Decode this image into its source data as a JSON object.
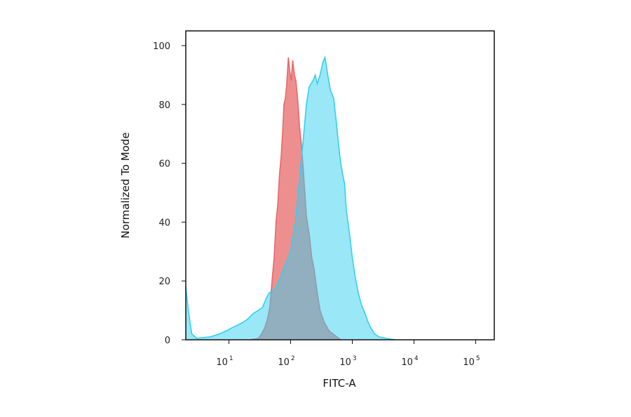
{
  "chart_data": {
    "type": "area",
    "title": "",
    "xlabel": "FITC-A",
    "ylabel": "Normalized To Mode",
    "xscale": "log",
    "xlim": [
      2,
      200000
    ],
    "ylim": [
      0,
      105
    ],
    "x_ticks": [
      {
        "value": 10,
        "base": "10",
        "exp": "1"
      },
      {
        "value": 100,
        "base": "10",
        "exp": "2"
      },
      {
        "value": 1000,
        "base": "10",
        "exp": "3"
      },
      {
        "value": 10000,
        "base": "10",
        "exp": "4"
      },
      {
        "value": 100000,
        "base": "10",
        "exp": "5"
      }
    ],
    "y_ticks": [
      0,
      20,
      40,
      60,
      80,
      100
    ],
    "grid": false,
    "legend": "none",
    "series": [
      {
        "color": "#e8696a",
        "points": [
          [
            22,
            0
          ],
          [
            30,
            0.5
          ],
          [
            34,
            2
          ],
          [
            38,
            4
          ],
          [
            42,
            7
          ],
          [
            46,
            11
          ],
          [
            50,
            20
          ],
          [
            54,
            28
          ],
          [
            58,
            40
          ],
          [
            62,
            46
          ],
          [
            66,
            56
          ],
          [
            70,
            62
          ],
          [
            74,
            70
          ],
          [
            78,
            80
          ],
          [
            82,
            82
          ],
          [
            86,
            86
          ],
          [
            92,
            96
          ],
          [
            96,
            92
          ],
          [
            102,
            88
          ],
          [
            108,
            95
          ],
          [
            115,
            90
          ],
          [
            122,
            88
          ],
          [
            130,
            82
          ],
          [
            140,
            72
          ],
          [
            150,
            66
          ],
          [
            160,
            58
          ],
          [
            170,
            50
          ],
          [
            180,
            42
          ],
          [
            200,
            36
          ],
          [
            220,
            28
          ],
          [
            240,
            24
          ],
          [
            270,
            16
          ],
          [
            300,
            10
          ],
          [
            350,
            6
          ],
          [
            420,
            3
          ],
          [
            520,
            1.5
          ],
          [
            650,
            0
          ]
        ]
      },
      {
        "color": "#33d0f0",
        "points": [
          [
            2,
            18
          ],
          [
            2.2,
            10
          ],
          [
            2.5,
            2
          ],
          [
            3,
            0.5
          ],
          [
            5,
            1
          ],
          [
            7,
            2
          ],
          [
            9,
            3
          ],
          [
            11,
            4
          ],
          [
            14,
            5
          ],
          [
            17,
            6
          ],
          [
            20,
            7
          ],
          [
            25,
            9
          ],
          [
            30,
            10
          ],
          [
            35,
            11
          ],
          [
            40,
            14
          ],
          [
            45,
            16
          ],
          [
            55,
            17
          ],
          [
            65,
            20
          ],
          [
            80,
            25
          ],
          [
            100,
            30
          ],
          [
            120,
            40
          ],
          [
            140,
            55
          ],
          [
            160,
            68
          ],
          [
            180,
            80
          ],
          [
            200,
            86
          ],
          [
            230,
            88
          ],
          [
            250,
            90
          ],
          [
            270,
            87
          ],
          [
            300,
            90
          ],
          [
            330,
            94
          ],
          [
            360,
            96
          ],
          [
            400,
            90
          ],
          [
            440,
            85
          ],
          [
            500,
            82
          ],
          [
            550,
            74
          ],
          [
            600,
            66
          ],
          [
            650,
            60
          ],
          [
            700,
            56
          ],
          [
            750,
            53
          ],
          [
            800,
            44
          ],
          [
            900,
            36
          ],
          [
            1000,
            28
          ],
          [
            1100,
            22
          ],
          [
            1250,
            16
          ],
          [
            1400,
            12
          ],
          [
            1600,
            9
          ],
          [
            1800,
            6
          ],
          [
            2000,
            4
          ],
          [
            2300,
            2
          ],
          [
            2700,
            1
          ],
          [
            3500,
            0.5
          ],
          [
            5000,
            0
          ]
        ]
      }
    ]
  }
}
